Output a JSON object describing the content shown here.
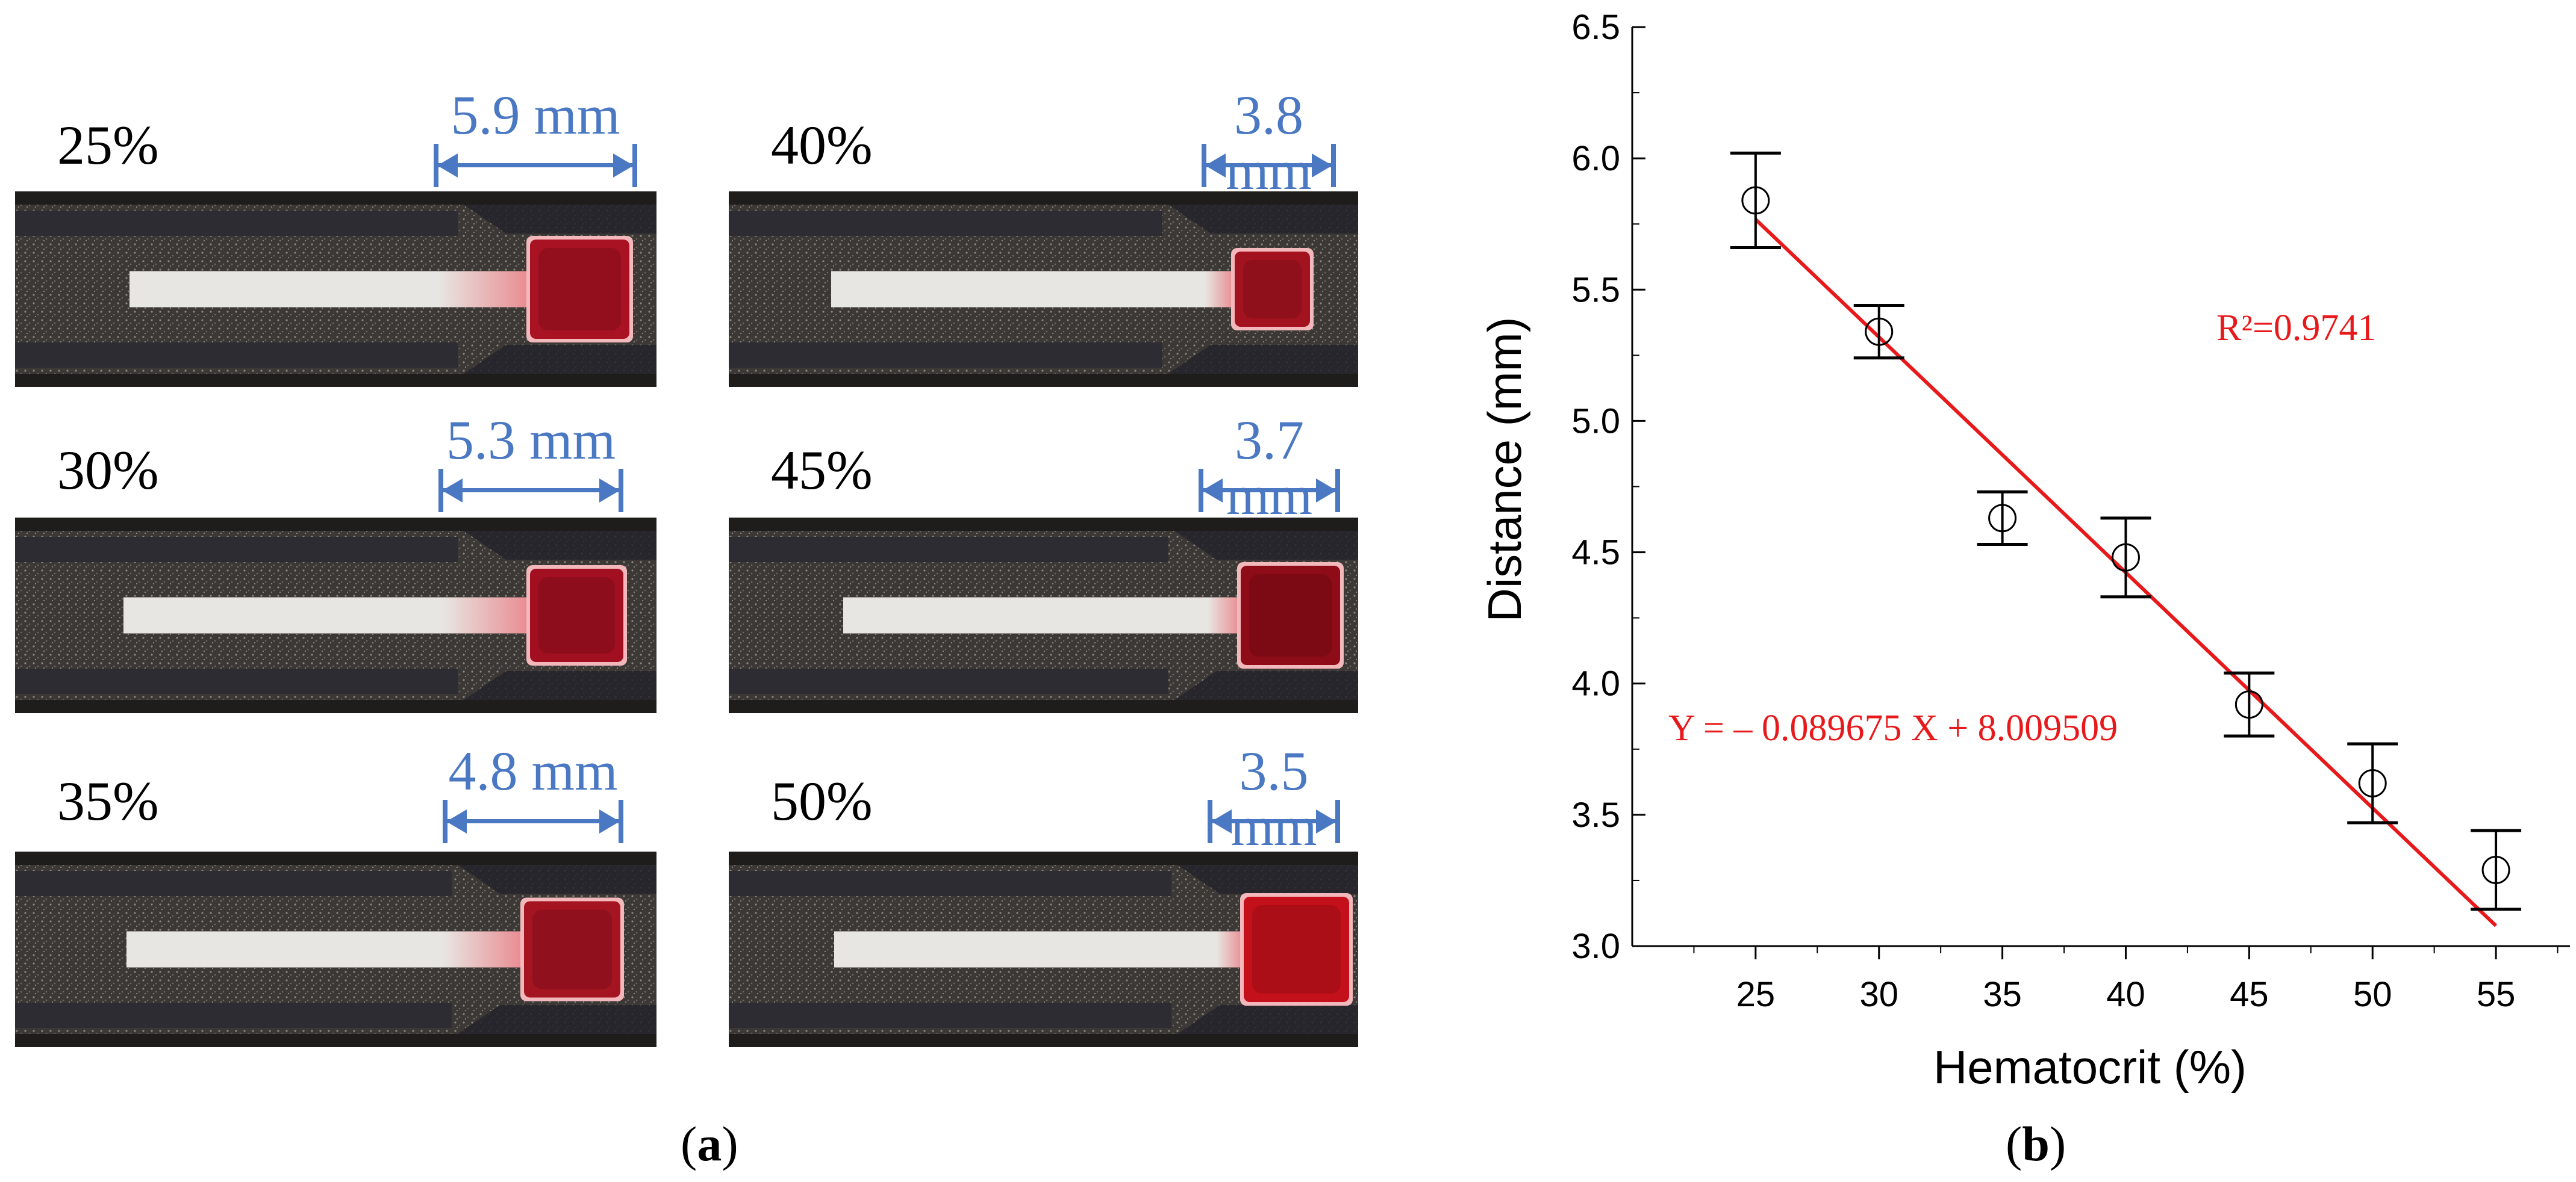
{
  "panel_a": {
    "label_open": "(",
    "label_letter": "a",
    "label_close": ")",
    "strips": [
      {
        "hematocrit": "25%",
        "measurement": "5.9 mm"
      },
      {
        "hematocrit": "40%",
        "measurement": "3.8 mm"
      },
      {
        "hematocrit": "30%",
        "measurement": "5.3 mm"
      },
      {
        "hematocrit": "45%",
        "measurement": "3.7 mm"
      },
      {
        "hematocrit": "35%",
        "measurement": "4.8 mm"
      },
      {
        "hematocrit": "50%",
        "measurement": "3.5 mm"
      }
    ],
    "colors": {
      "measure_blue": "#4a78c2",
      "blood": "#b0121f",
      "strip_dark": "#3a3836",
      "paper": "#e8e6e2"
    }
  },
  "panel_b": {
    "label_open": "(",
    "label_letter": "b",
    "label_close": ")"
  },
  "chart_data": {
    "type": "scatter",
    "xlabel": "Hematocrit (%)",
    "ylabel": "Distance (mm)",
    "xlim": [
      20,
      58
    ],
    "ylim": [
      3.0,
      6.5
    ],
    "xticks": [
      "25",
      "30",
      "35",
      "40",
      "45",
      "50",
      "55"
    ],
    "yticks": [
      "3.0",
      "3.5",
      "4.0",
      "4.5",
      "5.0",
      "5.5",
      "6.0",
      "6.5"
    ],
    "x": [
      25,
      30,
      35,
      40,
      45,
      50,
      55
    ],
    "y": [
      5.84,
      5.34,
      4.63,
      4.48,
      3.92,
      3.62,
      3.29
    ],
    "error": [
      0.18,
      0.1,
      0.1,
      0.15,
      0.12,
      0.15,
      0.15
    ],
    "fit": {
      "slope": -0.089675,
      "intercept": 8.009509,
      "color": "#e8191b"
    },
    "equation_label": "Y = – 0.089675 X + 8.009509",
    "r2_label": "R²=0.9741",
    "grid": false,
    "marker": "open-circle"
  }
}
